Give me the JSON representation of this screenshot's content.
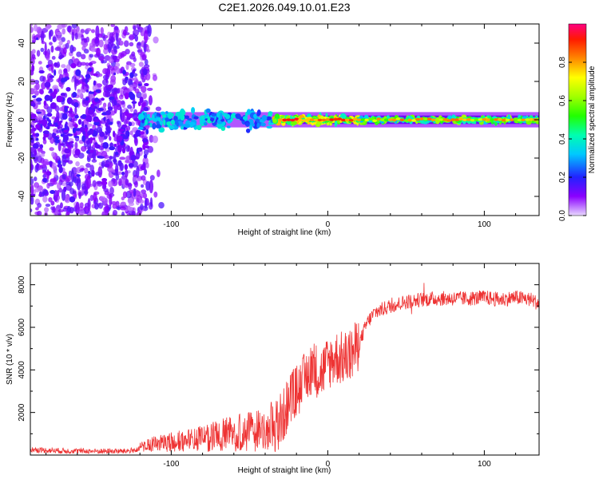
{
  "figure_title": "C2E1.2026.049.10.01.E23",
  "chart_data": [
    {
      "type": "heatmap",
      "title": "C2E1.2026.049.10.01.E23",
      "xlabel": "Height of straight line (km)",
      "ylabel": "Frequency (Hz)",
      "xlim": [
        -190,
        135
      ],
      "ylim": [
        -50,
        50
      ],
      "xticks": [
        -100,
        0,
        100
      ],
      "xtick_labels": [
        "-100",
        "0",
        "100"
      ],
      "yticks": [
        -40,
        -20,
        0,
        20,
        40
      ],
      "ytick_labels": [
        "-40",
        "-20",
        "0",
        "20",
        "40"
      ],
      "colorbar": {
        "label": "Normalized spectral amplitude",
        "range": [
          0,
          1
        ],
        "ticks": [
          0.0,
          0.2,
          0.4,
          0.6,
          0.8
        ],
        "tick_labels": [
          "0.0",
          "0.2",
          "0.4",
          "0.6",
          "0.8"
        ],
        "colormap": "rainbow (purple to red)"
      },
      "description_bands": [
        {
          "x_range": [
            -190,
            -115
          ],
          "freq_spread": 50,
          "amplitude": 0.1
        },
        {
          "x_range": [
            -120,
            -35
          ],
          "freq_spread": 8,
          "amplitude": 0.35
        },
        {
          "x_range": [
            -35,
            20
          ],
          "freq_spread": 3,
          "amplitude": 0.7
        },
        {
          "x_range": [
            20,
            135
          ],
          "freq_spread": 2,
          "amplitude": 0.55
        }
      ]
    },
    {
      "type": "line",
      "xlabel": "Height of straight line (km)",
      "ylabel": "SNR (10 * v/v)",
      "xlim": [
        -190,
        135
      ],
      "ylim": [
        0,
        9000
      ],
      "xticks": [
        -100,
        0,
        100
      ],
      "xtick_labels": [
        "-100",
        "0",
        "100"
      ],
      "yticks": [
        2000,
        4000,
        6000,
        8000
      ],
      "ytick_labels": [
        "2000",
        "4000",
        "6000",
        "8000"
      ],
      "series": [
        {
          "name": "SNR",
          "color": "#ee3333",
          "x": [
            -190,
            -170,
            -150,
            -130,
            -120,
            -110,
            -100,
            -90,
            -80,
            -70,
            -60,
            -50,
            -40,
            -30,
            -25,
            -20,
            -15,
            -10,
            -5,
            0,
            5,
            10,
            15,
            20,
            25,
            30,
            40,
            50,
            60,
            70,
            80,
            90,
            100,
            110,
            120,
            130,
            135
          ],
          "values": [
            250,
            200,
            180,
            180,
            250,
            400,
            500,
            550,
            650,
            800,
            900,
            1000,
            1100,
            1500,
            2500,
            3000,
            3500,
            4200,
            3800,
            4300,
            4600,
            4500,
            4700,
            5200,
            6200,
            6700,
            7000,
            7200,
            7300,
            7350,
            7350,
            7350,
            7400,
            7300,
            7400,
            7300,
            7100
          ]
        }
      ]
    }
  ]
}
